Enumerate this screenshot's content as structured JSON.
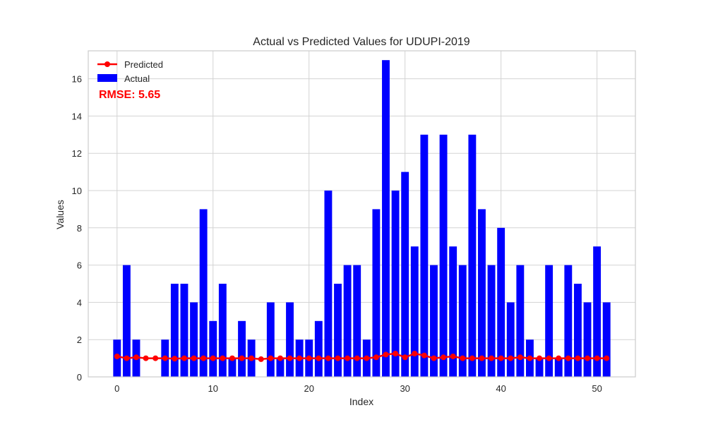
{
  "chart_data": {
    "type": "bar",
    "title": "Actual vs Predicted Values for UDUPI-2019",
    "xlabel": "Index",
    "ylabel": "Values",
    "xlim": [
      -3,
      54
    ],
    "ylim": [
      0,
      17.5
    ],
    "xticks": [
      0,
      10,
      20,
      30,
      40,
      50
    ],
    "yticks": [
      0,
      2,
      4,
      6,
      8,
      10,
      12,
      14,
      16
    ],
    "grid": true,
    "legend_position": "top-left",
    "annotation": "RMSE: 5.65",
    "colors": {
      "actual": "#0000ff",
      "predicted": "#ff0000",
      "annotation": "#ff0000"
    },
    "x": [
      0,
      1,
      2,
      3,
      4,
      5,
      6,
      7,
      8,
      9,
      10,
      11,
      12,
      13,
      14,
      15,
      16,
      17,
      18,
      19,
      20,
      21,
      22,
      23,
      24,
      25,
      26,
      27,
      28,
      29,
      30,
      31,
      32,
      33,
      34,
      35,
      36,
      37,
      38,
      39,
      40,
      41,
      42,
      43,
      44,
      45,
      46,
      47,
      48,
      49,
      50,
      51
    ],
    "series": [
      {
        "name": "Actual",
        "kind": "bar",
        "values": [
          2,
          6,
          2,
          0,
          0,
          2,
          5,
          5,
          4,
          9,
          3,
          5,
          1,
          3,
          2,
          0,
          4,
          1,
          4,
          2,
          2,
          3,
          10,
          5,
          6,
          6,
          2,
          9,
          17,
          10,
          11,
          7,
          13,
          6,
          13,
          7,
          6,
          13,
          9,
          6,
          8,
          4,
          6,
          2,
          1,
          6,
          1,
          6,
          5,
          4,
          7,
          4
        ]
      },
      {
        "name": "Predicted",
        "kind": "line",
        "values": [
          1.1,
          1.0,
          1.05,
          1.0,
          1.0,
          1.0,
          0.98,
          1.0,
          1.0,
          1.0,
          1.0,
          1.0,
          1.0,
          1.0,
          1.0,
          0.95,
          1.0,
          1.0,
          1.0,
          1.0,
          1.0,
          1.0,
          1.0,
          1.0,
          1.0,
          1.0,
          1.0,
          1.05,
          1.2,
          1.25,
          1.05,
          1.25,
          1.15,
          1.0,
          1.05,
          1.1,
          1.0,
          1.0,
          1.0,
          1.0,
          1.0,
          1.0,
          1.05,
          1.0,
          1.0,
          1.0,
          1.0,
          1.0,
          1.0,
          1.0,
          1.0,
          1.0
        ]
      }
    ]
  }
}
